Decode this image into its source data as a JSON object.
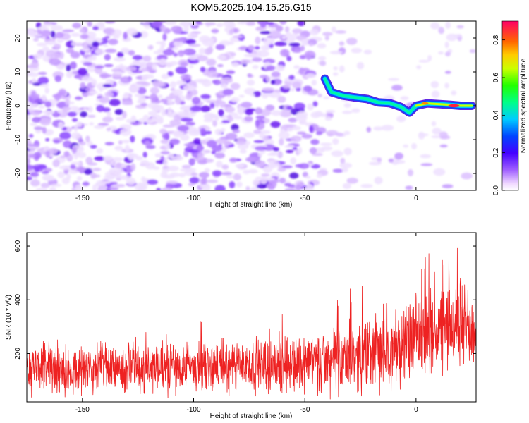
{
  "title": "KOM5.2025.104.15.25.G15",
  "chart_data": [
    {
      "type": "heatmap",
      "xlabel": "Height of straight line (km)",
      "ylabel": "Frequency (Hz)",
      "xlim": [
        -175,
        27
      ],
      "ylim": [
        -25,
        25
      ],
      "xticks": [
        -150,
        -100,
        -50,
        0
      ],
      "yticks": [
        -20,
        -10,
        0,
        10,
        20
      ],
      "ridge": {
        "description_points": [
          {
            "x": -41,
            "y": 8
          },
          {
            "x": -38,
            "y": 4
          },
          {
            "x": -33,
            "y": 3
          },
          {
            "x": -28,
            "y": 2.5
          },
          {
            "x": -22,
            "y": 2
          },
          {
            "x": -17,
            "y": 1
          },
          {
            "x": -12,
            "y": 0.8
          },
          {
            "x": -7,
            "y": -0.3
          },
          {
            "x": -3,
            "y": -2
          },
          {
            "x": 0,
            "y": 0
          },
          {
            "x": 5,
            "y": 0.7
          },
          {
            "x": 10,
            "y": 0.5
          },
          {
            "x": 15,
            "y": 0.3
          },
          {
            "x": 20,
            "y": 0
          },
          {
            "x": 25,
            "y": 0
          }
        ]
      },
      "colorbar": {
        "label": "Normalized spectral amplitude",
        "range": [
          0,
          0.9
        ],
        "ticks": [
          "0.0",
          "0.2",
          "0.4",
          "0.6",
          "0.8"
        ]
      }
    },
    {
      "type": "line",
      "xlabel": "Height of straight line (km)",
      "ylabel": "SNR (10 * v/v)",
      "xlim": [
        -175,
        27
      ],
      "ylim": [
        20,
        650
      ],
      "xticks": [
        -150,
        -100,
        -50,
        0
      ],
      "yticks": [
        200,
        400,
        600
      ],
      "color": "#ee2222",
      "envelope": [
        {
          "x": -175,
          "base": 140,
          "spread": 90
        },
        {
          "x": -125,
          "base": 145,
          "spread": 100
        },
        {
          "x": -75,
          "base": 150,
          "spread": 100
        },
        {
          "x": -40,
          "base": 170,
          "spread": 120
        },
        {
          "x": -10,
          "base": 220,
          "spread": 150
        },
        {
          "x": 10,
          "base": 280,
          "spread": 170
        },
        {
          "x": 27,
          "base": 330,
          "spread": 180
        }
      ]
    }
  ]
}
